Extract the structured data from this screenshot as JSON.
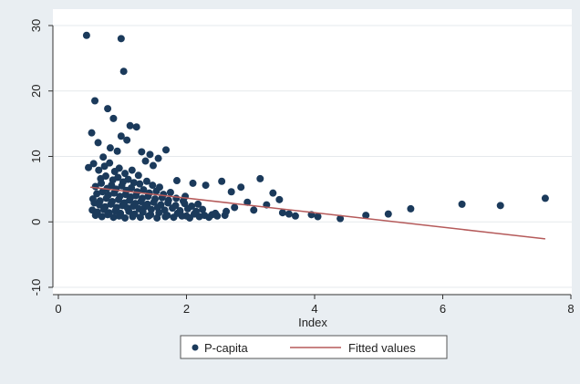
{
  "chart_data": {
    "type": "scatter",
    "title": "",
    "xlabel": "Index",
    "ylabel": "",
    "xlim": [
      0,
      8
    ],
    "ylim": [
      -10,
      30
    ],
    "x_ticks": [
      0,
      2,
      4,
      6,
      8
    ],
    "y_ticks": [
      -10,
      0,
      10,
      20,
      30
    ],
    "grid": "horizontal",
    "legend_position": "bottom",
    "colors": {
      "points": "#1b3a5b",
      "fit_line": "#b55a5a",
      "plot_bg": "#ffffff",
      "frame_bg": "#e9eef2"
    },
    "series": [
      {
        "name": "P-capita",
        "kind": "scatter",
        "x": [
          0.44,
          0.98,
          1.02,
          0.57,
          0.86,
          0.77,
          1.12,
          1.22,
          0.52,
          0.98,
          1.07,
          1.68,
          0.62,
          0.81,
          1.3,
          1.43,
          1.56,
          0.47,
          0.7,
          0.92,
          1.36,
          1.48,
          0.55,
          0.63,
          0.72,
          0.8,
          0.88,
          0.95,
          1.04,
          1.15,
          1.25,
          0.66,
          0.74,
          0.85,
          0.93,
          1.01,
          1.09,
          1.18,
          1.27,
          1.38,
          1.47,
          1.58,
          0.58,
          0.67,
          0.76,
          0.83,
          0.9,
          0.99,
          1.06,
          1.14,
          1.23,
          1.33,
          1.42,
          1.53,
          1.64,
          1.75,
          0.6,
          0.69,
          0.78,
          0.87,
          0.96,
          1.05,
          1.13,
          1.21,
          1.31,
          1.4,
          1.51,
          1.62,
          1.72,
          1.84,
          1.95,
          0.54,
          0.65,
          0.75,
          0.84,
          0.94,
          1.03,
          1.11,
          1.2,
          1.29,
          1.39,
          1.49,
          1.6,
          1.71,
          1.83,
          1.97,
          2.08,
          0.56,
          0.64,
          0.73,
          0.82,
          0.91,
          1.0,
          1.08,
          1.17,
          1.26,
          1.35,
          1.45,
          1.55,
          1.66,
          1.78,
          1.9,
          2.02,
          2.15,
          2.25,
          0.53,
          0.61,
          0.71,
          0.79,
          0.89,
          0.97,
          1.1,
          1.19,
          1.32,
          1.44,
          1.57,
          1.7,
          1.86,
          2.0,
          2.12,
          2.28,
          2.4,
          0.58,
          0.68,
          0.77,
          0.86,
          0.95,
          1.04,
          1.16,
          1.28,
          1.41,
          1.54,
          1.67,
          1.8,
          1.93,
          2.05,
          2.2,
          2.35,
          2.48,
          2.6,
          1.85,
          2.1,
          2.3,
          2.55,
          2.7,
          2.85,
          2.95,
          2.75,
          2.62,
          2.45,
          2.18,
          1.98,
          3.15,
          3.35,
          3.45,
          3.25,
          3.05,
          3.5,
          3.7,
          3.6,
          3.95,
          4.05,
          4.4,
          4.8,
          5.15,
          5.5,
          6.3,
          6.9,
          7.6
        ],
        "y": [
          28.5,
          28.0,
          23.0,
          18.5,
          15.8,
          17.3,
          14.7,
          14.5,
          13.6,
          13.1,
          12.5,
          11.0,
          12.1,
          11.3,
          10.7,
          10.3,
          9.7,
          8.3,
          9.9,
          10.8,
          9.3,
          8.6,
          8.9,
          7.9,
          8.5,
          9.0,
          7.7,
          8.2,
          7.4,
          7.9,
          7.1,
          6.6,
          7.0,
          6.4,
          6.8,
          6.1,
          6.5,
          6.0,
          5.8,
          6.2,
          5.6,
          5.3,
          5.4,
          5.9,
          5.1,
          5.6,
          5.0,
          5.5,
          4.8,
          5.2,
          4.6,
          4.9,
          4.4,
          4.7,
          4.2,
          4.5,
          4.3,
          4.6,
          4.1,
          4.4,
          3.9,
          4.2,
          3.8,
          4.0,
          3.6,
          3.9,
          3.5,
          3.7,
          3.3,
          3.6,
          3.2,
          3.5,
          3.2,
          3.6,
          3.1,
          3.4,
          2.9,
          3.3,
          2.8,
          3.1,
          2.7,
          3.0,
          2.6,
          2.9,
          2.5,
          2.8,
          2.4,
          2.9,
          2.6,
          2.3,
          2.7,
          2.2,
          2.5,
          2.1,
          2.4,
          2.0,
          2.3,
          1.9,
          2.2,
          1.8,
          2.1,
          1.7,
          2.0,
          1.6,
          1.9,
          1.8,
          1.5,
          1.9,
          1.4,
          1.7,
          1.3,
          1.6,
          1.2,
          1.5,
          1.1,
          1.4,
          1.0,
          1.3,
          0.9,
          1.2,
          1.0,
          1.1,
          1.0,
          0.8,
          1.1,
          0.7,
          0.9,
          0.6,
          0.8,
          0.7,
          0.9,
          0.6,
          0.8,
          0.7,
          0.9,
          0.6,
          0.8,
          0.7,
          0.9,
          1.0,
          6.3,
          5.9,
          5.6,
          6.2,
          4.6,
          5.3,
          3.0,
          2.2,
          1.6,
          1.3,
          2.7,
          3.9,
          6.6,
          4.4,
          3.4,
          2.6,
          1.8,
          1.4,
          0.9,
          1.2,
          1.1,
          0.8,
          0.5,
          1.0,
          1.2,
          2.0,
          2.7,
          2.5,
          3.6
        ]
      },
      {
        "name": "Fitted values",
        "kind": "line",
        "x": [
          0.5,
          7.6
        ],
        "y": [
          5.3,
          -2.6
        ]
      }
    ]
  }
}
